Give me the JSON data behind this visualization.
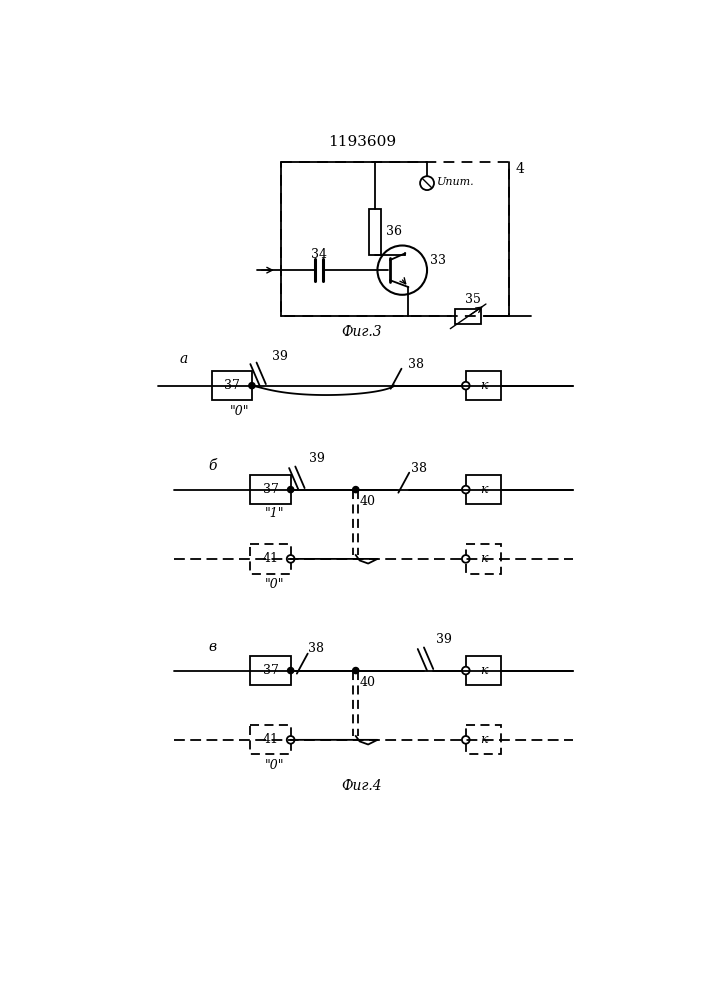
{
  "title": "1193609",
  "fig3_label": "Фиг.3",
  "fig4_label": "Фиг.4",
  "bg": "#ffffff"
}
